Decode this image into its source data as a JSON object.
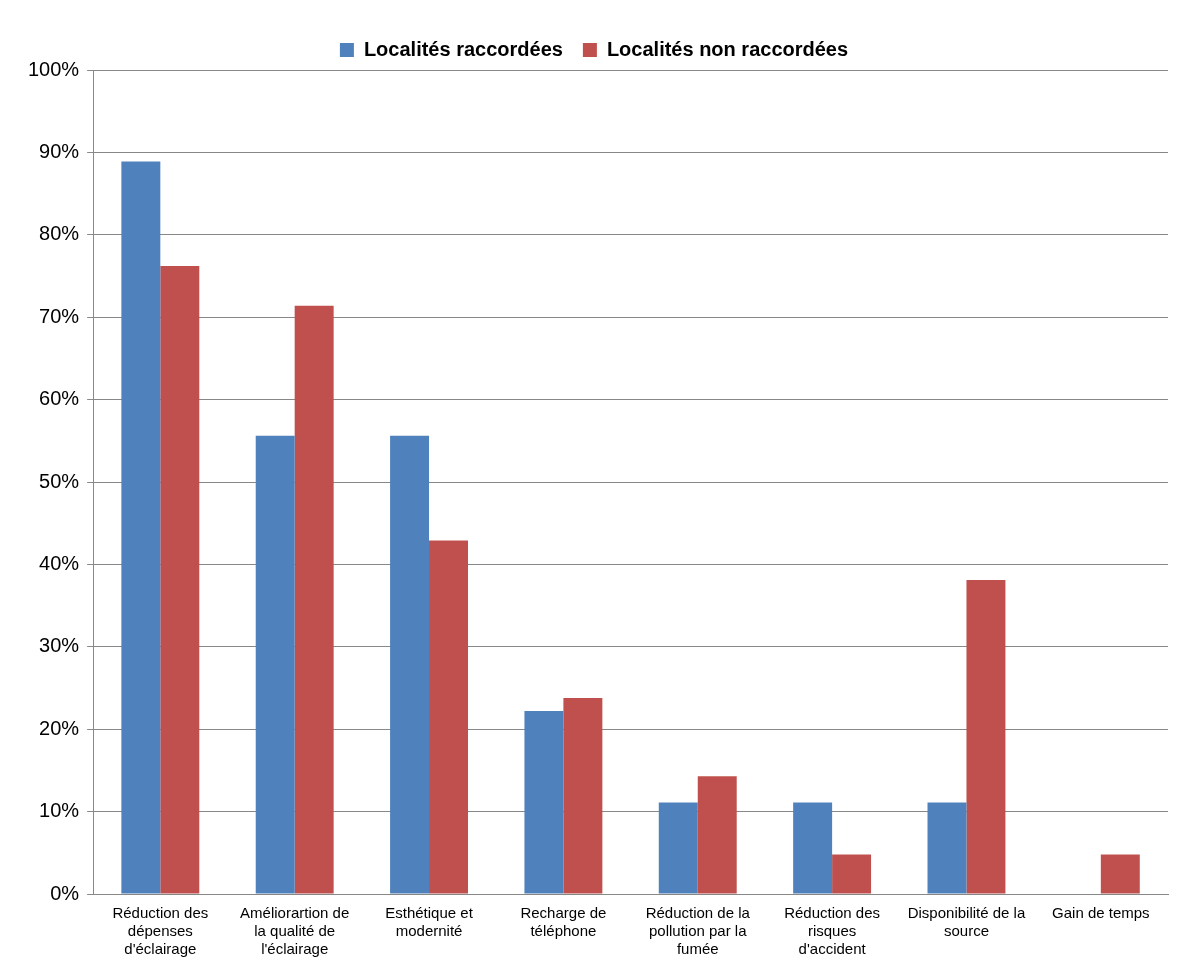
{
  "chart_data": {
    "type": "bar",
    "categories": [
      "Réduction des dépenses d'éclairage",
      "Améliorartion de la qualité de l'éclairage",
      "Esthétique et modernité",
      "Recharge de téléphone",
      "Réduction de la pollution par la fumée",
      "Réduction des risques d'accident",
      "Disponibilité de la source",
      "Gain de temps"
    ],
    "series": [
      {
        "name": "Localités raccordées",
        "color": "#4f81bd",
        "values": [
          88.9,
          55.6,
          55.6,
          22.2,
          11.1,
          11.1,
          11.1,
          0
        ]
      },
      {
        "name": "Localités non raccordées",
        "color": "#c0504d",
        "values": [
          76.2,
          71.4,
          42.9,
          23.8,
          14.3,
          4.8,
          38.1,
          4.8
        ]
      }
    ],
    "ylim": [
      0,
      100
    ],
    "yticks": [
      {
        "value": 0,
        "label": "0%"
      },
      {
        "value": 10,
        "label": "10%"
      },
      {
        "value": 20,
        "label": "20%"
      },
      {
        "value": 30,
        "label": "30%"
      },
      {
        "value": 40,
        "label": "40%"
      },
      {
        "value": 50,
        "label": "50%"
      },
      {
        "value": 60,
        "label": "60%"
      },
      {
        "value": 70,
        "label": "70%"
      },
      {
        "value": 80,
        "label": "80%"
      },
      {
        "value": 90,
        "label": "90%"
      },
      {
        "value": 100,
        "label": "100%"
      }
    ],
    "grid": "y",
    "legend": "top"
  }
}
